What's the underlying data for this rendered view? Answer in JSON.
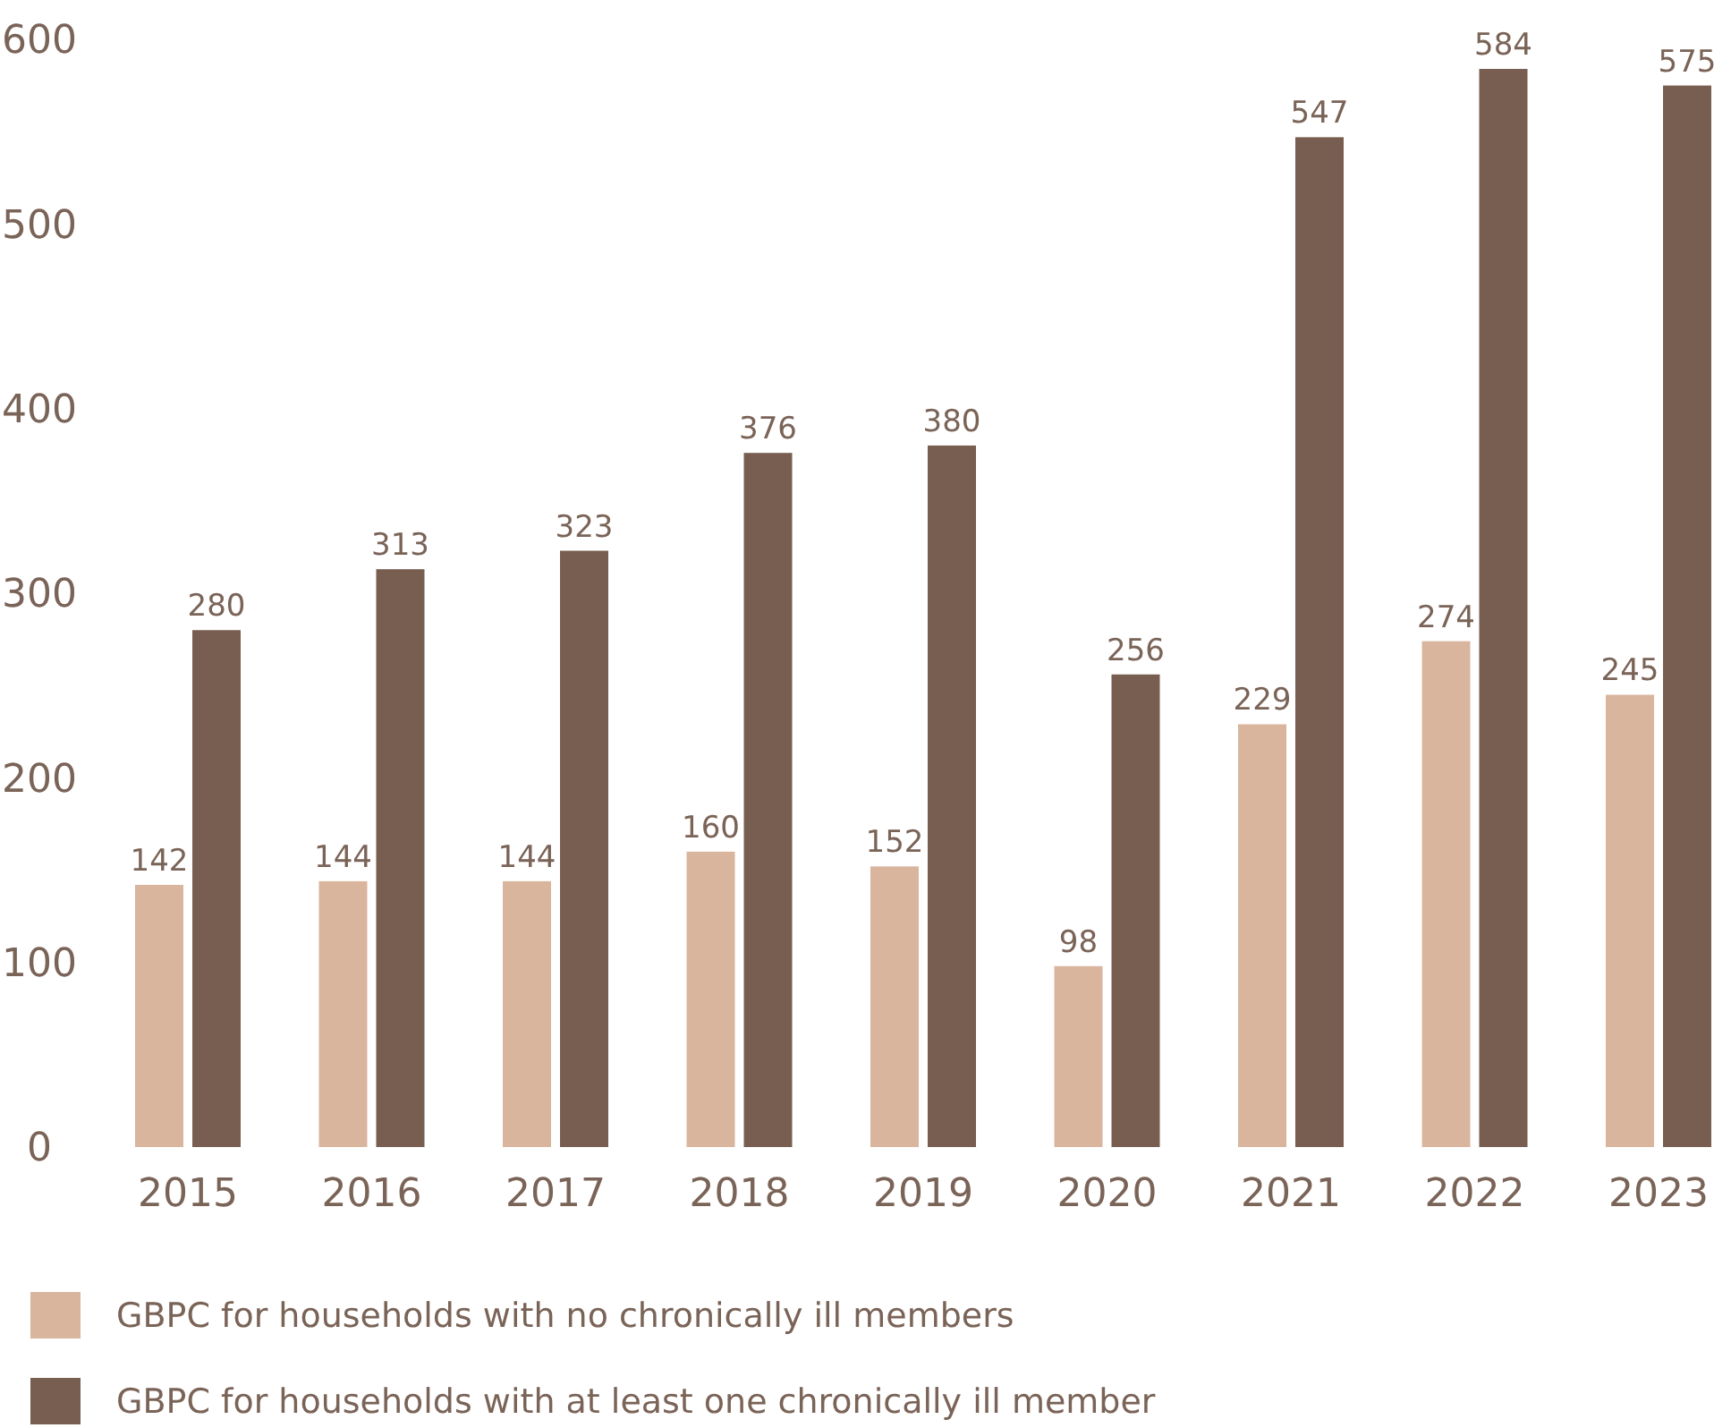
{
  "chart_data": {
    "type": "bar",
    "categories": [
      "2015",
      "2016",
      "2017",
      "2018",
      "2019",
      "2020",
      "2021",
      "2022",
      "2023"
    ],
    "series": [
      {
        "name": "GBPC for households with no chronically ill members",
        "color": "#d9b59e",
        "values": [
          142,
          144,
          144,
          160,
          152,
          98,
          229,
          274,
          245
        ]
      },
      {
        "name": "GBPC for households with at least one chronically ill member",
        "color": "#785e50",
        "values": [
          280,
          313,
          323,
          376,
          380,
          256,
          547,
          584,
          575
        ]
      }
    ],
    "ylim": [
      0,
      600
    ],
    "yticks": [
      0,
      100,
      200,
      300,
      400,
      500,
      600
    ],
    "data_labels": true,
    "legend": "bottom",
    "grid": false
  }
}
